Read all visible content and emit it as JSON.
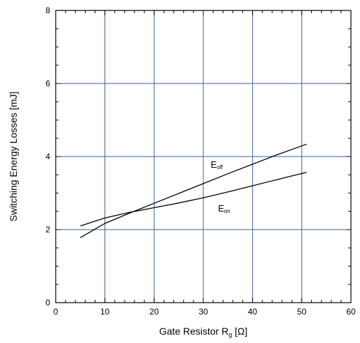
{
  "chart_data": {
    "type": "line",
    "title": "",
    "xlabel": {
      "main": "Gate Resistor R",
      "sub": "g",
      "unit": " [Ω]"
    },
    "ylabel": "Switching Energy Losses [mJ]",
    "xlim": [
      0,
      60
    ],
    "ylim": [
      0,
      8
    ],
    "xticks": [
      0,
      10,
      20,
      30,
      40,
      50,
      60
    ],
    "yticks": [
      0,
      2,
      4,
      6,
      8
    ],
    "grid": true,
    "grid_color": "#3a5d9c",
    "line_color": "#000000",
    "series": [
      {
        "name": {
          "main": "E",
          "sub": "off"
        },
        "label_at": [
          31.5,
          3.7
        ],
        "x": [
          5,
          10,
          15,
          20,
          25,
          30,
          35,
          40,
          45,
          51
        ],
        "y": [
          1.78,
          2.17,
          2.45,
          2.72,
          2.99,
          3.26,
          3.53,
          3.79,
          4.05,
          4.34
        ]
      },
      {
        "name": {
          "main": "E",
          "sub": "on"
        },
        "label_at": [
          33,
          2.5
        ],
        "x": [
          5,
          10,
          15,
          20,
          25,
          30,
          35,
          40,
          45,
          51
        ],
        "y": [
          2.1,
          2.32,
          2.47,
          2.6,
          2.73,
          2.87,
          3.03,
          3.2,
          3.37,
          3.57
        ]
      }
    ]
  }
}
